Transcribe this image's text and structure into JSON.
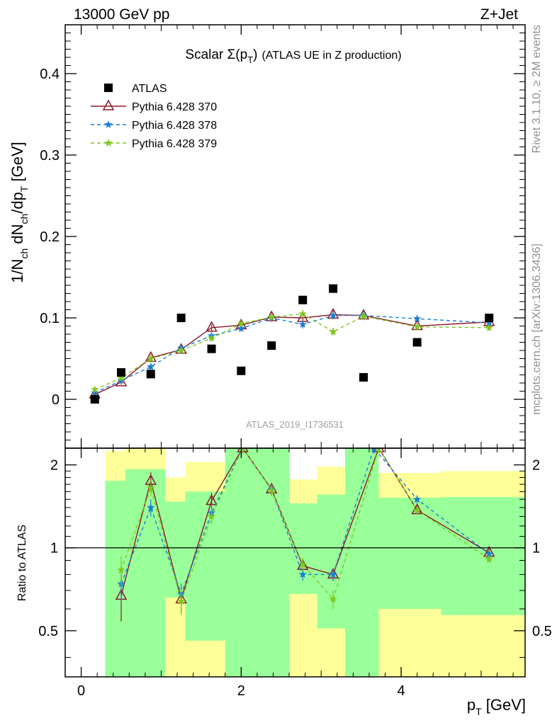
{
  "header": {
    "left": "13000 GeV pp",
    "right": "Z+Jet"
  },
  "side": {
    "rivet": "Rivet 3.1.10, ≥ 2M events",
    "mcplots": "mcplots.cern.ch [arXiv:1306.3436]"
  },
  "chart_data": {
    "type": "scatter",
    "title": "Scalar Σ(pT) (ATLAS UE in Z production)",
    "title_main": "Scalar Σ(p",
    "title_sub": "T",
    "title_close": ")",
    "title_rest": "(ATLAS UE in Z production)",
    "analysis_label": "ATLAS_2019_I1736531",
    "xlabel": {
      "main": "p",
      "sub": "T",
      "rest": " [GeV]"
    },
    "ylabel": {
      "a": "1/N",
      "a_sub": "ch",
      "b": " dN",
      "b_sub": "ch",
      "c": "/dp",
      "c_sub": "T",
      "d": " [GeV]"
    },
    "ratio_ylabel": "Ratio to ATLAS",
    "xlim": [
      -0.2,
      5.55
    ],
    "ylim": [
      -0.06,
      0.46
    ],
    "ratio_ylim": [
      0.34,
      2.3
    ],
    "x_ticks": [
      0,
      2,
      4
    ],
    "x_tick_labels": [
      "0",
      "2",
      "4"
    ],
    "y_ticks": [
      0,
      0.1,
      0.2,
      0.3,
      0.4
    ],
    "y_tick_labels": [
      "0",
      "0.1",
      "0.2",
      "0.3",
      "0.4"
    ],
    "ratio_ticks": [
      0.5,
      1,
      2
    ],
    "ratio_tick_labels": [
      "0.5",
      "1",
      "2"
    ],
    "legend_placement": "top-left",
    "bin_edges": [
      0.3,
      0.55,
      1.05,
      1.3,
      1.8,
      2.2,
      2.6,
      2.95,
      3.3,
      3.72,
      4.5,
      5.55
    ],
    "band_green": [
      [
        0.3,
        0.55,
        0.34,
        1.75
      ],
      [
        0.55,
        1.05,
        0.34,
        1.93
      ],
      [
        1.05,
        1.3,
        0.34,
        1.47
      ],
      [
        1.3,
        1.8,
        0.34,
        1.6
      ],
      [
        1.8,
        2.2,
        0.34,
        2.3
      ],
      [
        2.2,
        2.6,
        0.34,
        2.3
      ],
      [
        2.6,
        2.95,
        0.34,
        1.45
      ],
      [
        2.95,
        3.3,
        0.34,
        1.56
      ],
      [
        3.3,
        3.72,
        0.34,
        2.3
      ],
      [
        3.72,
        4.5,
        0.34,
        1.52
      ],
      [
        4.5,
        5.55,
        0.34,
        1.53
      ]
    ],
    "band_yellow": [
      [
        0.3,
        0.55,
        0.34,
        2.25
      ],
      [
        0.55,
        1.05,
        0.34,
        2.3
      ],
      [
        1.05,
        1.3,
        0.34,
        1.8
      ],
      [
        1.3,
        1.8,
        0.34,
        2.05
      ],
      [
        1.8,
        2.2,
        0.34,
        2.3
      ],
      [
        2.6,
        2.95,
        0.34,
        1.77
      ],
      [
        2.95,
        3.3,
        0.34,
        1.97
      ],
      [
        3.72,
        4.5,
        0.34,
        1.87
      ],
      [
        4.5,
        5.55,
        0.34,
        1.9
      ]
    ],
    "band_white": [
      [
        1.05,
        1.3,
        0.34,
        0.66
      ],
      [
        1.3,
        1.8,
        0.34,
        0.46
      ],
      [
        2.6,
        2.95,
        0.34,
        0.68
      ],
      [
        2.95,
        3.3,
        0.34,
        0.51
      ],
      [
        3.72,
        4.5,
        0.34,
        0.6
      ],
      [
        4.5,
        5.55,
        0.34,
        0.57
      ]
    ],
    "series": [
      {
        "name": "ATLAS",
        "color": "#000000",
        "marker": "square",
        "x": [
          0.17,
          0.5,
          0.87,
          1.25,
          1.63,
          2.0,
          2.38,
          2.77,
          3.15,
          3.53,
          4.2,
          5.1
        ],
        "y": [
          0.0,
          0.033,
          0.031,
          0.1,
          0.062,
          0.035,
          0.066,
          0.122,
          0.136,
          0.027,
          0.07,
          0.1
        ]
      },
      {
        "name": "Pythia 6.428 370",
        "color": "#8b1a2a",
        "marker": "triangle",
        "dash": "",
        "x": [
          0.17,
          0.5,
          0.87,
          1.25,
          1.63,
          2.0,
          2.38,
          2.77,
          3.15,
          3.53,
          4.2,
          5.1
        ],
        "y": [
          0.006,
          0.021,
          0.051,
          0.061,
          0.088,
          0.091,
          0.101,
          0.1,
          0.104,
          0.103,
          0.09,
          0.095
        ],
        "err": [
          0.002,
          0.003,
          0.004,
          0.004,
          0.004,
          0.004,
          0.005,
          0.005,
          0.005,
          0.005,
          0.004,
          0.004
        ],
        "ratio_x": [
          0.5,
          0.87,
          1.25,
          1.63,
          2.02,
          2.38,
          2.77,
          3.15,
          3.72,
          4.2,
          5.1
        ],
        "ratio_y": [
          0.67,
          1.75,
          0.65,
          1.48,
          2.3,
          1.63,
          0.86,
          0.8,
          2.3,
          1.37,
          0.96
        ],
        "ratio_err": [
          0.13,
          0.13,
          0.07,
          0.1,
          0.1,
          0.08,
          0.05,
          0.04,
          0.1,
          0.05,
          0.03
        ]
      },
      {
        "name": "Pythia 6.428 378",
        "color": "#1a7fd4",
        "marker": "star",
        "dash": "5,4",
        "x": [
          0.17,
          0.5,
          0.87,
          1.25,
          1.63,
          2.0,
          2.38,
          2.77,
          3.15,
          3.53,
          4.2,
          5.1
        ],
        "y": [
          0.008,
          0.023,
          0.04,
          0.063,
          0.078,
          0.087,
          0.1,
          0.092,
          0.103,
          0.103,
          0.099,
          0.094
        ],
        "err": [
          0.002,
          0.003,
          0.004,
          0.004,
          0.004,
          0.004,
          0.005,
          0.005,
          0.005,
          0.005,
          0.004,
          0.004
        ],
        "ratio_x": [
          0.5,
          0.87,
          1.25,
          1.63,
          2.02,
          2.38,
          2.77,
          3.15,
          3.66,
          4.2,
          5.1
        ],
        "ratio_y": [
          0.74,
          1.4,
          0.68,
          1.34,
          2.3,
          1.63,
          0.8,
          0.8,
          2.3,
          1.5,
          0.95
        ],
        "ratio_err": [
          0.1,
          0.1,
          0.06,
          0.09,
          0.1,
          0.07,
          0.04,
          0.04,
          0.1,
          0.05,
          0.03
        ]
      },
      {
        "name": "Pythia 6.428 379",
        "color": "#7ec81f",
        "marker": "star",
        "dash": "5,4",
        "x": [
          0.17,
          0.5,
          0.87,
          1.25,
          1.63,
          2.0,
          2.38,
          2.77,
          3.15,
          3.53,
          4.2,
          5.1
        ],
        "y": [
          0.012,
          0.026,
          0.05,
          0.06,
          0.075,
          0.093,
          0.101,
          0.105,
          0.083,
          0.102,
          0.089,
          0.088
        ],
        "err": [
          0.002,
          0.003,
          0.004,
          0.004,
          0.004,
          0.004,
          0.005,
          0.005,
          0.005,
          0.005,
          0.004,
          0.004
        ],
        "ratio_x": [
          0.5,
          0.87,
          1.25,
          1.63,
          2.02,
          2.38,
          2.77,
          3.15,
          3.72,
          4.2,
          5.1
        ],
        "ratio_y": [
          0.83,
          1.65,
          0.64,
          1.3,
          2.3,
          1.62,
          0.87,
          0.65,
          2.3,
          1.37,
          0.91
        ],
        "ratio_err": [
          0.1,
          0.11,
          0.07,
          0.08,
          0.1,
          0.07,
          0.05,
          0.05,
          0.1,
          0.05,
          0.03
        ]
      }
    ]
  }
}
